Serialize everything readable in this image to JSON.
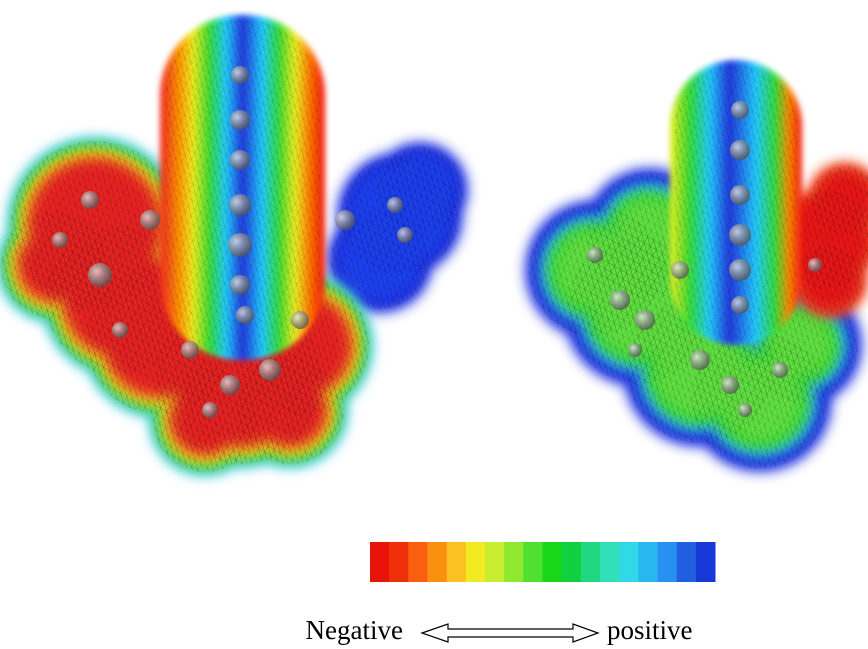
{
  "legend": {
    "left_label": "Negative",
    "right_label": "positive"
  }
}
